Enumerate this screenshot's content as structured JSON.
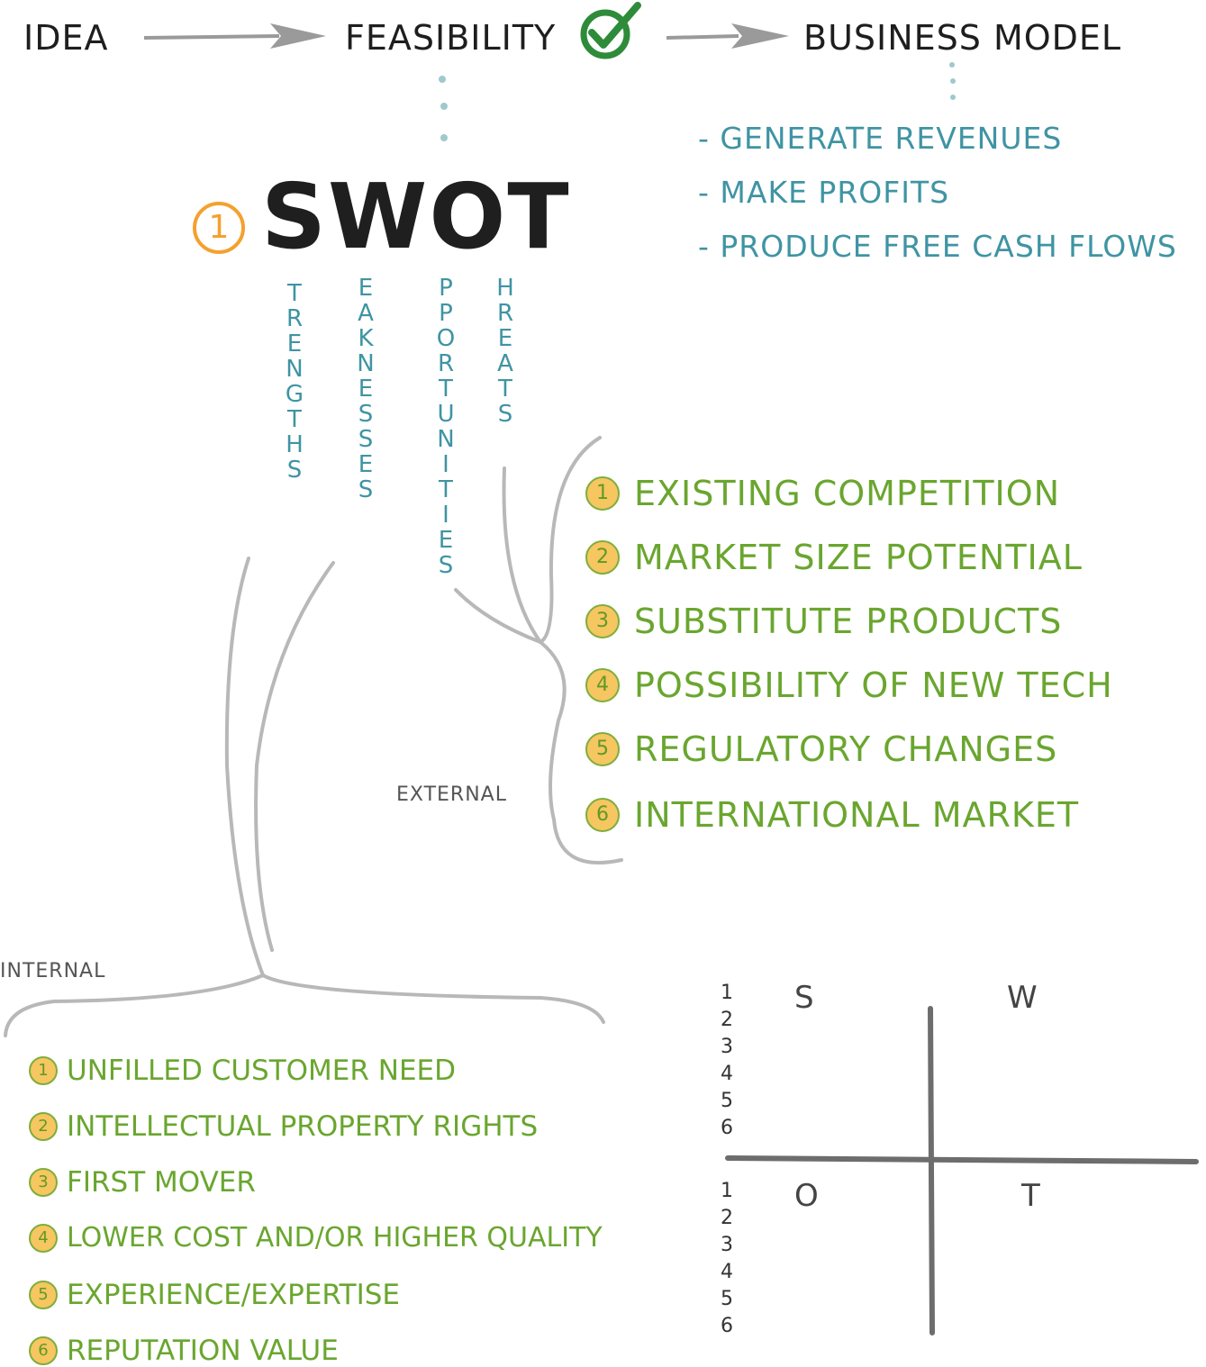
{
  "flow": {
    "idea": "IDEA",
    "feasibility": "FEASIBILITY",
    "business_model": "BUSINESS MODEL"
  },
  "business_model_items": [
    "- GENERATE REVENUES",
    "- MAKE PROFITS",
    "- PRODUCE FREE CASH FLOWS"
  ],
  "swot": {
    "number": "1",
    "title": "SWOT",
    "columns": [
      {
        "letters": [
          "T",
          "R",
          "E",
          "N",
          "G",
          "T",
          "H",
          "S"
        ]
      },
      {
        "letters": [
          "E",
          "A",
          "K",
          "N",
          "E",
          "S",
          "S",
          "E",
          "S"
        ]
      },
      {
        "letters": [
          "P",
          "P",
          "O",
          "R",
          "T",
          "U",
          "N",
          "I",
          "T",
          "I",
          "E",
          "S"
        ]
      },
      {
        "letters": [
          "H",
          "R",
          "E",
          "A",
          "T",
          "S"
        ]
      }
    ]
  },
  "labels": {
    "external": "EXTERNAL",
    "internal": "INTERNAL"
  },
  "external_items": [
    {
      "num": "1",
      "text": "EXISTING COMPETITION"
    },
    {
      "num": "2",
      "text": "MARKET SIZE POTENTIAL"
    },
    {
      "num": "3",
      "text": "SUBSTITUTE PRODUCTS"
    },
    {
      "num": "4",
      "text": "POSSIBILITY OF NEW TECH"
    },
    {
      "num": "5",
      "text": "REGULATORY CHANGES"
    },
    {
      "num": "6",
      "text": "INTERNATIONAL MARKET"
    }
  ],
  "internal_items": [
    {
      "num": "1",
      "text": "UNFILLED CUSTOMER NEED"
    },
    {
      "num": "2",
      "text": "INTELLECTUAL PROPERTY RIGHTS"
    },
    {
      "num": "3",
      "text": "FIRST MOVER"
    },
    {
      "num": "4",
      "text": "LOWER COST AND/OR HIGHER QUALITY"
    },
    {
      "num": "5",
      "text": "EXPERIENCE/EXPERTISE"
    },
    {
      "num": "6",
      "text": "REPUTATION VALUE"
    }
  ],
  "matrix": {
    "quadrants": {
      "s": "S",
      "w": "W",
      "o": "O",
      "t": "T"
    },
    "numbers": [
      "1",
      "2",
      "3",
      "4",
      "5",
      "6"
    ]
  },
  "colors": {
    "green_text": "#6aa62f",
    "teal_text": "#3f94a3",
    "orange_badge": "#f6c661",
    "check_green": "#2e8b3a",
    "branch_grey": "#b8b8b8"
  }
}
